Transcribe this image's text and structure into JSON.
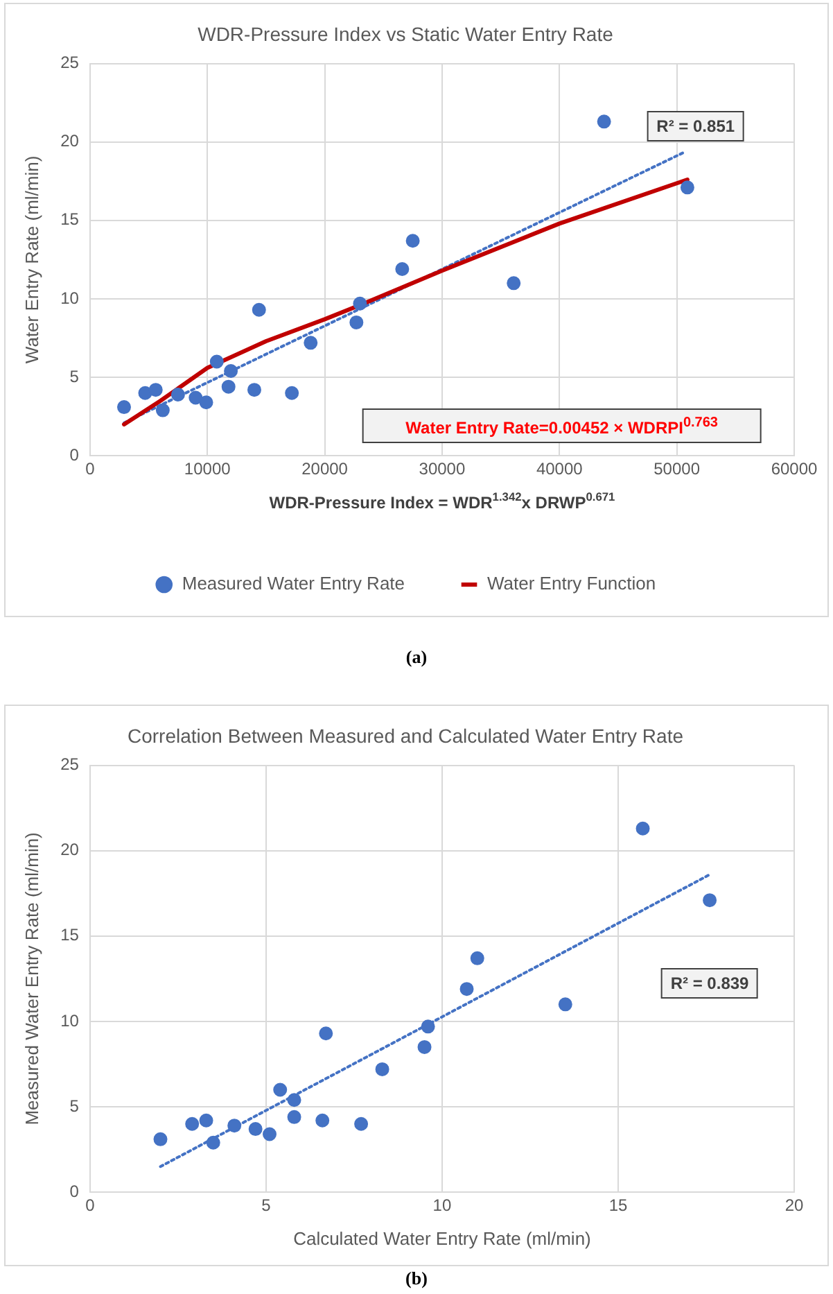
{
  "chart_data": [
    {
      "type": "scatter",
      "title": "WDR-Pressure Index vs Static Water Entry Rate",
      "xlabel": "WDR-Pressure Index = WDR$^{1.342}$x DRWP$^{0.671}$",
      "ylabel": "Water Entry Rate (ml/min)",
      "xlim": [
        0,
        60000
      ],
      "xticks": [
        0,
        10000,
        20000,
        30000,
        40000,
        50000,
        60000
      ],
      "ylim": [
        0,
        25
      ],
      "yticks": [
        0,
        5,
        10,
        15,
        20,
        25
      ],
      "grid": true,
      "legend": "bottom",
      "series": [
        {
          "name": "Measured Water Entry Rate",
          "color": "#4472c4",
          "marker": "circle",
          "x": [
            2900,
            4700,
            5600,
            6200,
            7500,
            9000,
            9900,
            10800,
            12000,
            11800,
            14000,
            14400,
            17200,
            18800,
            22700,
            23000,
            26600,
            27500,
            36100,
            43800,
            50900
          ],
          "values": [
            3.1,
            4.0,
            4.2,
            2.9,
            3.9,
            3.7,
            3.4,
            6.0,
            5.4,
            4.4,
            4.2,
            9.3,
            4.0,
            7.2,
            8.5,
            9.7,
            11.9,
            13.7,
            11.0,
            21.3,
            17.1
          ]
        },
        {
          "name": "Water Entry Function",
          "type": "line",
          "color": "#c00000",
          "line_style": "solid",
          "marker": "none",
          "x": [
            2900,
            6000,
            10000,
            15000,
            20000,
            23000,
            30000,
            40000,
            50900
          ],
          "values": [
            2.0,
            3.5,
            5.6,
            7.3,
            8.7,
            9.6,
            11.8,
            14.8,
            17.6
          ]
        },
        {
          "type": "line",
          "color": "#4472c4",
          "line_style": "dotted",
          "marker": "none",
          "x": [
            2900,
            50500
          ],
          "values": [
            2.1,
            19.3
          ]
        }
      ],
      "annotations": [
        "R² = 0.851",
        "Water Entry Rate=0.00452 × WDRPI$^{0.763}$",
        "(a)"
      ]
    },
    {
      "type": "scatter",
      "title": "Correlation Between Measured and Calculated Water Entry Rate",
      "xlabel": "Calculated Water Entry Rate (ml/min)",
      "ylabel": "Measured Water Entry Rate (ml/min)",
      "xlim": [
        0,
        20
      ],
      "xticks": [
        0,
        5,
        10,
        15,
        20
      ],
      "ylim": [
        0,
        25
      ],
      "yticks": [
        0,
        5,
        10,
        15,
        20,
        25
      ],
      "grid": true,
      "series": [
        {
          "color": "#4472c4",
          "marker": "circle",
          "x": [
            2.0,
            2.9,
            3.3,
            3.5,
            4.1,
            4.7,
            5.1,
            5.4,
            5.8,
            5.8,
            6.6,
            6.7,
            7.7,
            8.3,
            9.5,
            9.6,
            10.7,
            11.0,
            13.5,
            15.7,
            17.6
          ],
          "values": [
            3.1,
            4.0,
            4.2,
            2.9,
            3.9,
            3.7,
            3.4,
            6.0,
            5.4,
            4.4,
            4.2,
            9.3,
            4.0,
            7.2,
            8.5,
            9.7,
            11.9,
            13.7,
            11.0,
            21.3,
            17.1
          ]
        },
        {
          "type": "line",
          "color": "#4472c4",
          "line_style": "dotted",
          "marker": "none",
          "x": [
            2.0,
            17.6
          ],
          "values": [
            1.5,
            18.6
          ]
        }
      ],
      "annotations": [
        "R² = 0.839",
        "(b)"
      ]
    }
  ]
}
